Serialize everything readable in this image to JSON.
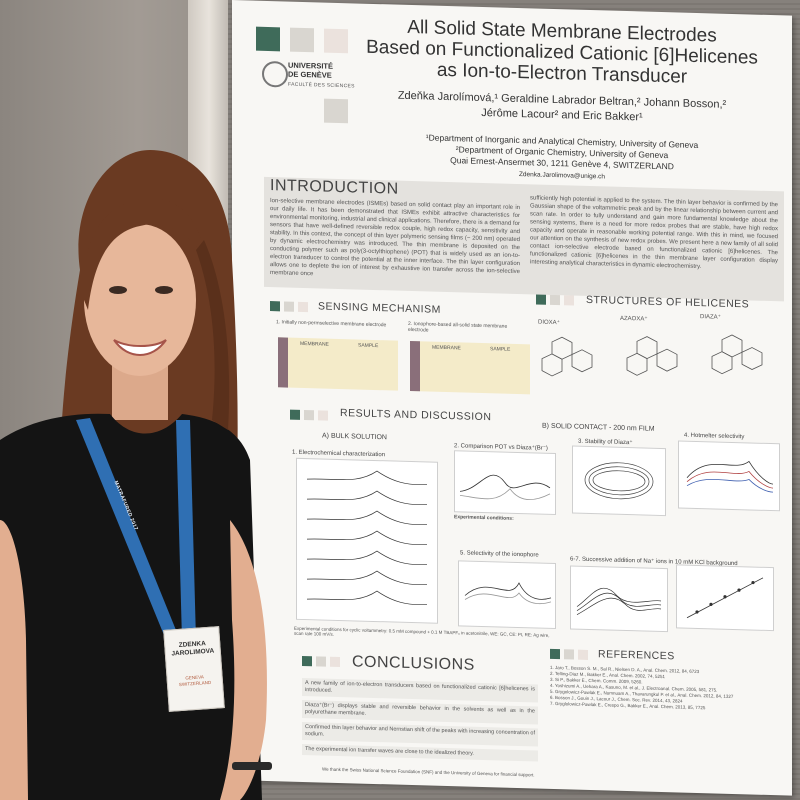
{
  "poster": {
    "title_line1": "All Solid State Membrane Electrodes",
    "title_line2": "Based on Functionalized Cationic [6]Helicenes",
    "title_line3": "as Ion-to-Electron Transducer",
    "authors_line1": "Zdeňka Jarolímová,¹ Geraldine Labrador Beltran,² Johann Bosson,²",
    "authors_line2": "Jérôme Lacour² and Eric Bakker¹",
    "affiliation1": "¹Department of Inorganic and Analytical Chemistry, University of Geneva",
    "affiliation2": "²Department of Organic Chemistry, University of Geneva",
    "affiliation3": "Quai Ernest-Ansermet 30, 1211 Genève 4, SWITZERLAND",
    "email": "Zdenka.Jarolimova@unige.ch",
    "university_line1": "UNIVERSITÉ",
    "university_line2": "DE GENÈVE",
    "faculty": "FACULTÉ DES SCIENCES",
    "sections": {
      "introduction": "INTRODUCTION",
      "sensing": "SENSING MECHANISM",
      "structures": "STRUCTURES OF HELICENES",
      "results": "RESULTS AND DISCUSSION",
      "conclusions": "CONCLUSIONS",
      "references": "REFERENCES"
    },
    "intro_left": "Ion-selective membrane electrodes (ISMEs) based on solid contact play an important role in our daily life. It has been demonstrated that ISMEs exhibit attractive characteristics for environmental monitoring, industrial and clinical applications. Therefore, there is a demand for sensors that have well-defined reversible redox couple, high redox capacity, sensitivity and stability. In this context, the concept of thin layer polymeric sensing films (~ 200 nm) operated by dynamic electrochemistry was introduced. The thin membrane is deposited on the conducting polymer such as poly(3-octylthiophene) (POT) that is widely used as an ion-to-electron transducer to control the potential at the inner interface. The thin layer configuration allows one to deplete the ion of interest by exhaustive ion transfer across the ion-selective membrane once",
    "intro_right": "sufficiently high potential is applied to the system. The thin layer behavior is confirmed by the Gaussian shape of the voltammetric peak and by the linear relationship between current and scan rate. In order to fully understand and gain more fundamental knowledge about the sensing systems, there is a need for more redox probes that are stable, have high redox capacity and operate in reasonable working potential range. With this in mind, we focused our attention on the synthesis of new redox probes. We present here a new family of all solid contact ion-selective electrode based on functionalized cationic [6]helicenes. The functionalized cationic [6]helicenes in the thin membrane layer configuration display interesting analytical characteristics in dynamic electrochemistry.",
    "sensing_1": "1. Initially non-permselective membrane electrode",
    "sensing_2": "2. Ionophore-based all-solid state membrane electrode",
    "membrane": "MEMBRANE",
    "sample": "SAMPLE",
    "helicene_dioxa": "DIOXA⁺",
    "helicene_azaoxa": "AZAOXA⁺",
    "helicene_diaza": "DIAZA⁺",
    "bulk_solution": "A) BULK SOLUTION",
    "solid_contact": "B) SOLID CONTACT - 200 nm FILM",
    "electrochem": "1. Electrochemical characterization",
    "comparison": "2. Comparison POT vs Diaza⁺(Br⁻)",
    "stability": "3. Stability of Diaza⁺",
    "hotmelt": "4. Hotmelter selectivity",
    "selectivity_ionophore": "5. Selectivity of the ionophore",
    "successive": "6-7. Successive addition of Na⁺ ions in 10 mM KCl background",
    "exp_conditions": "Experimental conditions:",
    "cv_conditions": "Experimental conditions for cyclic voltammetry: 0.5 mM compound + 0.1 M TBAPF₆ in acetonitrile, WE: GC, CE: Pt, RE: Ag wire, scan rate 100 mV/s.",
    "conclusion_items": [
      "A new family of ion-to-electron transducers based on functionalized cationic [6]helicenes is introduced.",
      "Diaza⁺(Br⁻) displays stable and reversible behavior in the solvents as well as in the polyurethane membrane.",
      "Confirmed thin layer behavior and Nernstian shift of the peaks with increasing concentration of sodium.",
      "The experimental ion transfer waves are close to the idealized theory."
    ],
    "references": [
      "1. Jaro T., Bosson S. M., Sal R., Nielsen D. A., Anal. Chem. 2012, 84, 6723",
      "2. Telting-Diaz M., Bakker E., Anal. Chem. 2002, 74, 5251",
      "3. Si P., Bakker E., Chem. Comm. 2009, 5260.",
      "4. Yoshizumi A., Uehara A., Kasuno, M. et al., J. Electroanal. Chem. 2005, 581, 275.",
      "5. Grygolowicz-Pawlak E., Numnuam A., Thavarungkul P. et al., Anal. Chem. 2012, 84, 1327",
      "6. Bosson J., Gouin J., Lacour J., Chem. Soc. Rev. 2014, 43, 2824",
      "7. Gryglolowicz-Pawlak E., Crespo G., Bakker E., Anal. Chem. 2013, 85, 7725"
    ],
    "footer": "We thank the Swiss National Science Foundation (SNF) and the University of Geneva for financial support."
  },
  "badge": {
    "name_line1": "ZDENKA",
    "name_line2": "JAROLIMOVA",
    "affiliation_line1": "GENEVA",
    "affiliation_line2": "SWITZERLAND"
  },
  "lanyard_text": "MATRAFURED 2017",
  "colors": {
    "poster_bg": "#f8f7f4",
    "accent_green": "#3f6b5a",
    "accent_grey": "#bdb9b2",
    "dress": "#141414",
    "lanyard_blue": "#2f6fb3",
    "hair": "#6a3a22",
    "skin": "#e7b79a"
  }
}
